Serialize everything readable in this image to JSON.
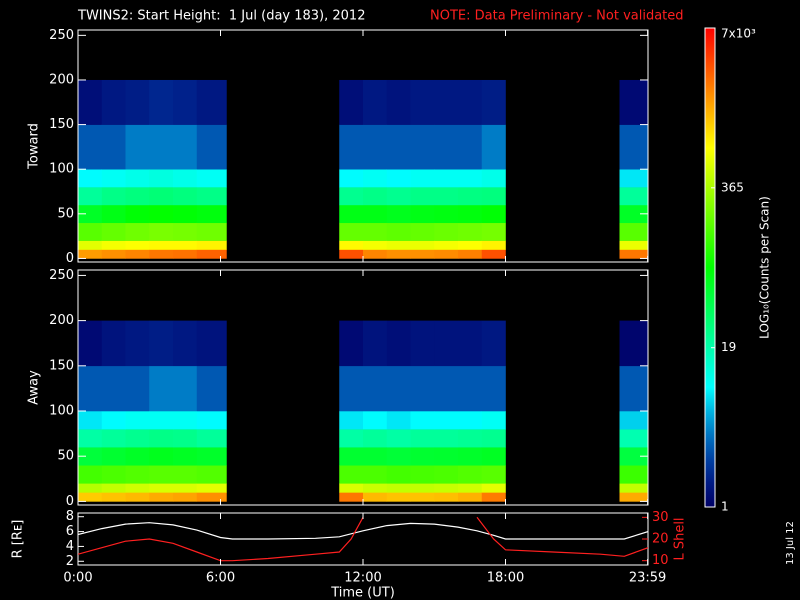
{
  "title": "TWINS2: Start Height:  1 Jul (day 183), 2012",
  "note": "NOTE: Data Preliminary - Not validated",
  "date_stamp": "13 Jul 12",
  "colorbar": {
    "label": "LOG₁₀(Counts per Scan)",
    "lim": [
      1,
      7000
    ],
    "log": true,
    "ticks": [
      1,
      19,
      365,
      {
        "value": 7000,
        "label": "7x10³"
      }
    ]
  },
  "chart_data": [
    {
      "type": "heatmap",
      "ylabel": "Toward",
      "ylim": [
        -4,
        256
      ],
      "yticks": [
        0,
        50,
        100,
        150,
        200,
        250
      ],
      "time_bins": [
        0,
        1,
        2,
        3,
        4,
        5,
        6.25,
        11,
        12,
        13,
        14,
        15,
        16,
        17,
        18,
        22.8,
        24
      ],
      "height_bins": [
        0,
        10,
        20,
        40,
        60,
        80,
        100,
        150,
        200
      ],
      "values": [
        [
          1800,
          600,
          180,
          60,
          22,
          9,
          3,
          1.3
        ],
        [
          2000,
          700,
          200,
          70,
          26,
          10,
          3,
          1.5
        ],
        [
          2200,
          750,
          220,
          80,
          28,
          11,
          4,
          1.6
        ],
        [
          2500,
          800,
          240,
          85,
          30,
          12,
          4,
          1.8
        ],
        [
          2600,
          800,
          230,
          80,
          28,
          11,
          4,
          1.7
        ],
        [
          3000,
          850,
          220,
          75,
          26,
          10,
          3,
          1.5
        ],
        null,
        [
          3500,
          800,
          200,
          70,
          24,
          9,
          3,
          1.3
        ],
        [
          2200,
          700,
          200,
          70,
          26,
          10,
          3,
          1.5
        ],
        [
          2000,
          650,
          190,
          65,
          24,
          9,
          3,
          1.4
        ],
        [
          2000,
          650,
          200,
          70,
          26,
          10,
          3,
          1.5
        ],
        [
          2100,
          700,
          210,
          72,
          26,
          10,
          3,
          1.5
        ],
        [
          2300,
          750,
          220,
          75,
          27,
          10,
          3,
          1.5
        ],
        [
          3500,
          850,
          230,
          80,
          28,
          11,
          4,
          1.6
        ],
        null,
        [
          2500,
          650,
          180,
          60,
          22,
          8,
          3,
          1.2
        ]
      ]
    },
    {
      "type": "heatmap",
      "ylabel": "Away",
      "ylim": [
        -4,
        256
      ],
      "yticks": [
        0,
        50,
        100,
        150,
        200,
        250
      ],
      "time_bins": [
        0,
        1,
        2,
        3,
        4,
        5,
        6.25,
        11,
        12,
        13,
        14,
        15,
        16,
        17,
        18,
        22.8,
        24
      ],
      "height_bins": [
        0,
        10,
        20,
        40,
        60,
        80,
        100,
        150,
        200
      ],
      "values": [
        [
          1200,
          400,
          150,
          50,
          20,
          8,
          3,
          1.2
        ],
        [
          1300,
          450,
          160,
          55,
          22,
          9,
          3,
          1.4
        ],
        [
          1400,
          500,
          170,
          60,
          24,
          10,
          3,
          1.5
        ],
        [
          1600,
          550,
          180,
          65,
          26,
          10,
          4,
          1.6
        ],
        [
          1700,
          550,
          180,
          62,
          25,
          10,
          4,
          1.5
        ],
        [
          2000,
          600,
          170,
          58,
          22,
          9,
          3,
          1.4
        ],
        null,
        [
          2500,
          550,
          160,
          55,
          20,
          8,
          3,
          1.2
        ],
        [
          1400,
          480,
          160,
          55,
          22,
          9,
          3,
          1.4
        ],
        [
          1300,
          450,
          150,
          52,
          20,
          8,
          3,
          1.3
        ],
        [
          1300,
          450,
          155,
          55,
          22,
          9,
          3,
          1.4
        ],
        [
          1350,
          470,
          160,
          56,
          22,
          9,
          3,
          1.4
        ],
        [
          1500,
          500,
          170,
          58,
          23,
          9,
          3,
          1.4
        ],
        [
          2400,
          600,
          180,
          62,
          24,
          10,
          3,
          1.5
        ],
        null,
        [
          1600,
          450,
          140,
          48,
          18,
          7,
          3,
          1.1
        ]
      ]
    },
    {
      "type": "line",
      "xlabel": "Time (UT)",
      "ylabel": "R [Rᴇ]",
      "y2label": "L Shell",
      "xlim": [
        0,
        24
      ],
      "xticks": [
        {
          "value": 0,
          "label": "0:00"
        },
        {
          "value": 6,
          "label": "6:00"
        },
        {
          "value": 12,
          "label": "12:00"
        },
        {
          "value": 18,
          "label": "18:00"
        },
        {
          "value": 23.983,
          "label": "23:59"
        }
      ],
      "ylim": [
        1.5,
        8.5
      ],
      "yticks": [
        2,
        4,
        6,
        8
      ],
      "y2lim": [
        8,
        32
      ],
      "y2ticks": [
        10,
        20,
        30
      ],
      "x": [
        0,
        1,
        2,
        3,
        4,
        5,
        6,
        6.5,
        8,
        10,
        11,
        11.5,
        12,
        13,
        14,
        15,
        16,
        16.8,
        17.5,
        18,
        20,
        22,
        23,
        24
      ],
      "series": [
        {
          "name": "R",
          "color": "#ffffff",
          "values": [
            5.6,
            6.4,
            7.0,
            7.2,
            6.9,
            6.2,
            5.2,
            5.0,
            5.0,
            5.1,
            5.3,
            5.7,
            6.1,
            6.8,
            7.1,
            7.0,
            6.6,
            6.1,
            5.5,
            5.0,
            5.0,
            5.0,
            5.0,
            6.0
          ]
        },
        {
          "name": "L Shell",
          "color": "#ff2020",
          "axis": "y2",
          "values": [
            13,
            16,
            19,
            20,
            18,
            14,
            10,
            10,
            11,
            13,
            14,
            20,
            30,
            null,
            null,
            null,
            null,
            30,
            20,
            15,
            14,
            13,
            12,
            16
          ]
        }
      ]
    }
  ]
}
